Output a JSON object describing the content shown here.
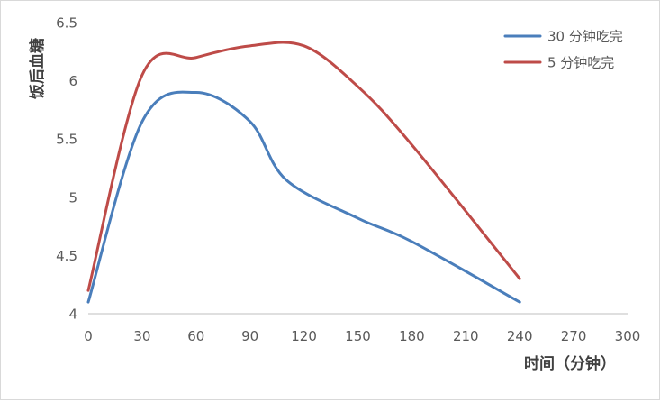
{
  "chart_data": {
    "type": "line",
    "title": "",
    "xlabel": "时间（分钟）",
    "ylabel": "饭后血糖",
    "xlim": [
      0,
      300
    ],
    "ylim": [
      4,
      6.5
    ],
    "x_ticks": [
      0,
      30,
      60,
      90,
      120,
      150,
      180,
      210,
      240,
      270,
      300
    ],
    "y_ticks": [
      4,
      4.5,
      5,
      5.5,
      6,
      6.5
    ],
    "y_tick_labels": [
      "4",
      "4.5",
      "5",
      "5.5",
      "6",
      "6.5"
    ],
    "grid": false,
    "legend_position": "top-right",
    "smooth": true,
    "series": [
      {
        "name": "30 分钟吃完",
        "color": "#4a7ebb",
        "x": [
          0,
          30,
          60,
          90,
          110,
          150,
          180,
          240
        ],
        "y": [
          4.1,
          5.65,
          5.9,
          5.65,
          5.15,
          4.82,
          4.62,
          4.1
        ]
      },
      {
        "name": "5 分钟吃完",
        "color": "#be4b48",
        "x": [
          0,
          30,
          60,
          90,
          120,
          150,
          180,
          240
        ],
        "y": [
          4.2,
          6.05,
          6.2,
          6.3,
          6.3,
          5.95,
          5.45,
          4.3
        ]
      }
    ]
  }
}
